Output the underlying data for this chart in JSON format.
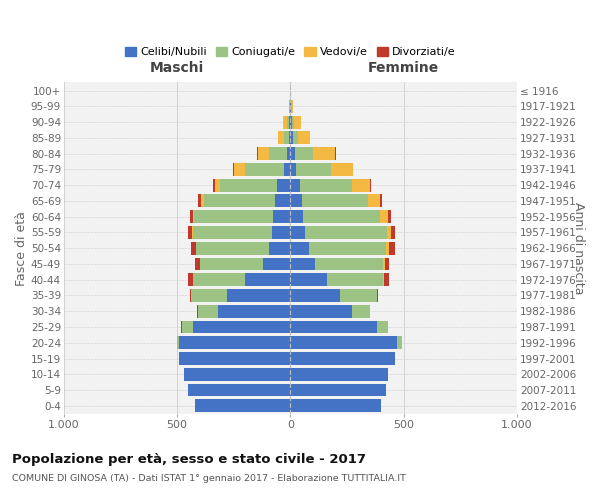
{
  "age_groups": [
    "0-4",
    "5-9",
    "10-14",
    "15-19",
    "20-24",
    "25-29",
    "30-34",
    "35-39",
    "40-44",
    "45-49",
    "50-54",
    "55-59",
    "60-64",
    "65-69",
    "70-74",
    "75-79",
    "80-84",
    "85-89",
    "90-94",
    "95-99",
    "100+"
  ],
  "birth_years": [
    "2012-2016",
    "2007-2011",
    "2002-2006",
    "1997-2001",
    "1992-1996",
    "1987-1991",
    "1982-1986",
    "1977-1981",
    "1972-1976",
    "1967-1971",
    "1962-1966",
    "1957-1961",
    "1952-1956",
    "1947-1951",
    "1942-1946",
    "1937-1941",
    "1932-1936",
    "1927-1931",
    "1922-1926",
    "1917-1921",
    "≤ 1916"
  ],
  "male_celibi": [
    420,
    450,
    470,
    490,
    490,
    430,
    320,
    280,
    200,
    120,
    95,
    80,
    75,
    70,
    60,
    30,
    15,
    8,
    5,
    2,
    0
  ],
  "male_coniugati": [
    0,
    0,
    0,
    2,
    10,
    50,
    90,
    160,
    230,
    280,
    320,
    350,
    350,
    310,
    250,
    170,
    80,
    20,
    12,
    3,
    0
  ],
  "male_vedovi": [
    0,
    0,
    0,
    0,
    2,
    0,
    0,
    0,
    1,
    1,
    2,
    3,
    5,
    15,
    25,
    50,
    50,
    25,
    15,
    2,
    0
  ],
  "male_divorziati": [
    0,
    0,
    0,
    0,
    0,
    2,
    3,
    5,
    22,
    18,
    22,
    18,
    15,
    12,
    8,
    5,
    2,
    2,
    0,
    0,
    0
  ],
  "female_nubili": [
    400,
    420,
    430,
    460,
    470,
    380,
    270,
    220,
    160,
    110,
    80,
    65,
    55,
    50,
    40,
    25,
    18,
    10,
    5,
    3,
    0
  ],
  "female_coniugate": [
    0,
    0,
    0,
    3,
    20,
    50,
    80,
    160,
    250,
    300,
    340,
    360,
    340,
    290,
    230,
    155,
    80,
    25,
    10,
    3,
    0
  ],
  "female_vedove": [
    0,
    0,
    0,
    0,
    0,
    0,
    0,
    1,
    2,
    5,
    15,
    20,
    35,
    55,
    80,
    95,
    100,
    50,
    30,
    5,
    0
  ],
  "female_divorziate": [
    0,
    0,
    0,
    0,
    0,
    2,
    2,
    5,
    22,
    20,
    25,
    18,
    15,
    8,
    5,
    3,
    2,
    2,
    0,
    0,
    0
  ],
  "colors": {
    "celibi": "#4472C4",
    "coniugati": "#9DC384",
    "vedovi": "#F4B942",
    "divorziati": "#C0392B"
  },
  "title": "Popolazione per età, sesso e stato civile - 2017",
  "subtitle": "COMUNE DI GINOSA (TA) - Dati ISTAT 1° gennaio 2017 - Elaborazione TUTTITALIA.IT",
  "ylabel_left": "Fasce di età",
  "ylabel_right": "Anni di nascita",
  "xlabel_left": "Maschi",
  "xlabel_right": "Femmine",
  "xlim": 1000,
  "xtick_vals": [
    -1000,
    -500,
    0,
    500,
    1000
  ],
  "xtick_labels": [
    "1.000",
    "500",
    "0",
    "500",
    "1.000"
  ],
  "legend_labels": [
    "Celibi/Nubili",
    "Coniugati/e",
    "Vedovi/e",
    "Divorziati/e"
  ],
  "bg_color": "#ffffff",
  "plot_bg": "#f2f2f2",
  "grid_color": "#cccccc"
}
